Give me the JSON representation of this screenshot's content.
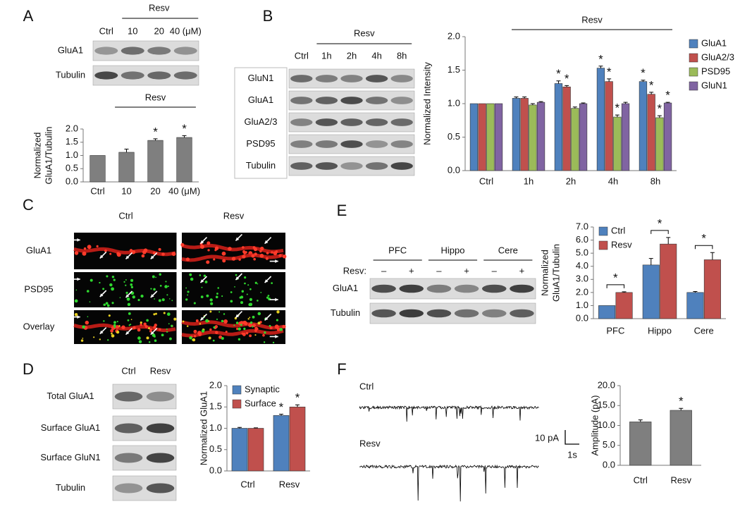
{
  "panels": {
    "A": {
      "letter": "A",
      "group": "Resv",
      "lanes": [
        "Ctrl",
        "10",
        "20",
        "40 (μM)"
      ],
      "rows": [
        "GluA1",
        "Tubulin"
      ]
    },
    "B": {
      "letter": "B",
      "group": "Resv",
      "lanes": [
        "Ctrl",
        "1h",
        "2h",
        "4h",
        "8h"
      ],
      "rows": [
        "GluN1",
        "GluA1",
        "GluA2/3",
        "PSD95",
        "Tubulin"
      ]
    },
    "C": {
      "letter": "C",
      "columns": [
        "Ctrl",
        "Resv"
      ],
      "rows": [
        "GluA1",
        "PSD95",
        "Overlay"
      ]
    },
    "D": {
      "letter": "D",
      "lanes": [
        "Ctrl",
        "Resv"
      ],
      "rows": [
        "Total GluA1",
        "Surface GluA1",
        "Surface GluN1",
        "Tubulin"
      ]
    },
    "E": {
      "letter": "E",
      "regions": [
        "PFC",
        "Hippo",
        "Cere"
      ],
      "treatment_label": "Resv:",
      "lanes": [
        "–",
        "+",
        "–",
        "+",
        "–",
        "+"
      ],
      "rows": [
        "GluA1",
        "Tubulin"
      ]
    },
    "F": {
      "letter": "F",
      "traces": [
        "Ctrl",
        "Resv"
      ],
      "scale_y": "10 pA",
      "scale_x": "1s"
    }
  },
  "chart_data": [
    {
      "type": "bar",
      "group_label": "Resv",
      "ylabel": [
        "Normalized",
        "GluA1/Tubulin"
      ],
      "categories": [
        "Ctrl",
        "10",
        "20",
        "40 (μM)"
      ],
      "series": [
        {
          "color": "#7f7f7f",
          "values": [
            1.0,
            1.12,
            1.57,
            1.68
          ],
          "errors": [
            0,
            0.12,
            0.06,
            0.07
          ],
          "markers": [
            null,
            null,
            "*",
            "*"
          ]
        }
      ],
      "ylim": [
        0,
        2
      ],
      "yticks": [
        {
          "value": 0,
          "label": "0.0"
        },
        {
          "value": 0.5,
          "label": "0.5"
        },
        {
          "value": 1,
          "label": "1.0"
        },
        {
          "value": 1.5,
          "label": "1.5"
        },
        {
          "value": 2,
          "label": "2.0"
        }
      ]
    },
    {
      "type": "bar",
      "group_label": "Resv",
      "ylabel": [
        "Normalized Intensity"
      ],
      "legend": "right",
      "categories": [
        "Ctrl",
        "1h",
        "2h",
        "4h",
        "8h"
      ],
      "series": [
        {
          "name": "GluA1",
          "color": "#4f81bd",
          "values": [
            1.0,
            1.08,
            1.3,
            1.53,
            1.33
          ],
          "errors": [
            0,
            0.02,
            0.04,
            0.03,
            0.02
          ],
          "markers": [
            null,
            null,
            "*",
            "*",
            "*"
          ]
        },
        {
          "name": "GluA2/3",
          "color": "#c0504d",
          "values": [
            1.0,
            1.08,
            1.25,
            1.33,
            1.14
          ],
          "errors": [
            0,
            0.02,
            0.02,
            0.04,
            0.03
          ],
          "markers": [
            null,
            null,
            "*",
            "*",
            "*"
          ]
        },
        {
          "name": "PSD95",
          "color": "#9bbb59",
          "values": [
            1.0,
            0.98,
            0.93,
            0.8,
            0.79
          ],
          "errors": [
            0,
            0.02,
            0.02,
            0.03,
            0.03
          ],
          "markers": [
            null,
            null,
            null,
            "*",
            "*"
          ]
        },
        {
          "name": "GluN1",
          "color": "#8064a2",
          "values": [
            1.0,
            1.02,
            1.0,
            1.0,
            1.01
          ],
          "errors": [
            0,
            0.01,
            0.01,
            0.02,
            0.01
          ],
          "markers": [
            null,
            null,
            null,
            null,
            "*"
          ]
        }
      ],
      "ylim": [
        0,
        2
      ],
      "yticks": [
        {
          "value": 0,
          "label": "0.0"
        },
        {
          "value": 0.5,
          "label": "0.5"
        },
        {
          "value": 1,
          "label": "1.0"
        },
        {
          "value": 1.5,
          "label": "1.5"
        },
        {
          "value": 2,
          "label": "2.0"
        }
      ]
    },
    {
      "type": "bar",
      "ylabel": [
        "Normalized GluA1"
      ],
      "legend": "top",
      "categories": [
        "Ctrl",
        "Resv"
      ],
      "series": [
        {
          "name": "Synaptic",
          "color": "#4f81bd",
          "values": [
            1.0,
            1.3
          ],
          "errors": [
            0.02,
            0.03
          ],
          "markers": [
            null,
            "*"
          ]
        },
        {
          "name": "Surface",
          "color": "#c0504d",
          "values": [
            1.0,
            1.5
          ],
          "errors": [
            0.01,
            0.05
          ],
          "markers": [
            null,
            "*"
          ]
        }
      ],
      "ylim": [
        0,
        2
      ],
      "yticks": [
        {
          "value": 0,
          "label": "0.0"
        },
        {
          "value": 0.5,
          "label": "0.5"
        },
        {
          "value": 1,
          "label": "1.0"
        },
        {
          "value": 1.5,
          "label": "1.5"
        },
        {
          "value": 2,
          "label": "2.0"
        }
      ]
    },
    {
      "type": "bar",
      "ylabel": [
        "Normalized",
        "GluA1/Tubulin"
      ],
      "legend": "top-left",
      "categories": [
        "PFC",
        "Hippo",
        "Cere"
      ],
      "category_markers": [
        "*",
        "*",
        "*"
      ],
      "series": [
        {
          "name": "Ctrl",
          "color": "#4f81bd",
          "values": [
            1.0,
            4.1,
            2.0
          ],
          "errors": [
            0,
            0.5,
            0.07
          ]
        },
        {
          "name": "Resv",
          "color": "#c0504d",
          "values": [
            2.0,
            5.7,
            4.5
          ],
          "errors": [
            0.05,
            0.5,
            0.55
          ]
        }
      ],
      "ylim": [
        0,
        7
      ],
      "yticks": [
        {
          "value": 0,
          "label": "0.0"
        },
        {
          "value": 1,
          "label": "1.0"
        },
        {
          "value": 2,
          "label": "2.0"
        },
        {
          "value": 3,
          "label": "3.0"
        },
        {
          "value": 4,
          "label": "4.0"
        },
        {
          "value": 5,
          "label": "5.0"
        },
        {
          "value": 6,
          "label": "6.0"
        },
        {
          "value": 7,
          "label": "7.0"
        }
      ]
    },
    {
      "type": "bar",
      "ylabel": [
        "Amplitude (pA)"
      ],
      "categories": [
        "Ctrl",
        "Resv"
      ],
      "series": [
        {
          "color": "#7f7f7f",
          "values": [
            10.9,
            13.8
          ],
          "errors": [
            0.5,
            0.5
          ],
          "markers": [
            null,
            "*"
          ]
        }
      ],
      "ylim": [
        0,
        20
      ],
      "yticks": [
        {
          "value": 0,
          "label": "0.0"
        },
        {
          "value": 5,
          "label": "5.0"
        },
        {
          "value": 10,
          "label": "10.0"
        },
        {
          "value": 15,
          "label": "15.0"
        },
        {
          "value": 20,
          "label": "20.0"
        }
      ]
    }
  ]
}
